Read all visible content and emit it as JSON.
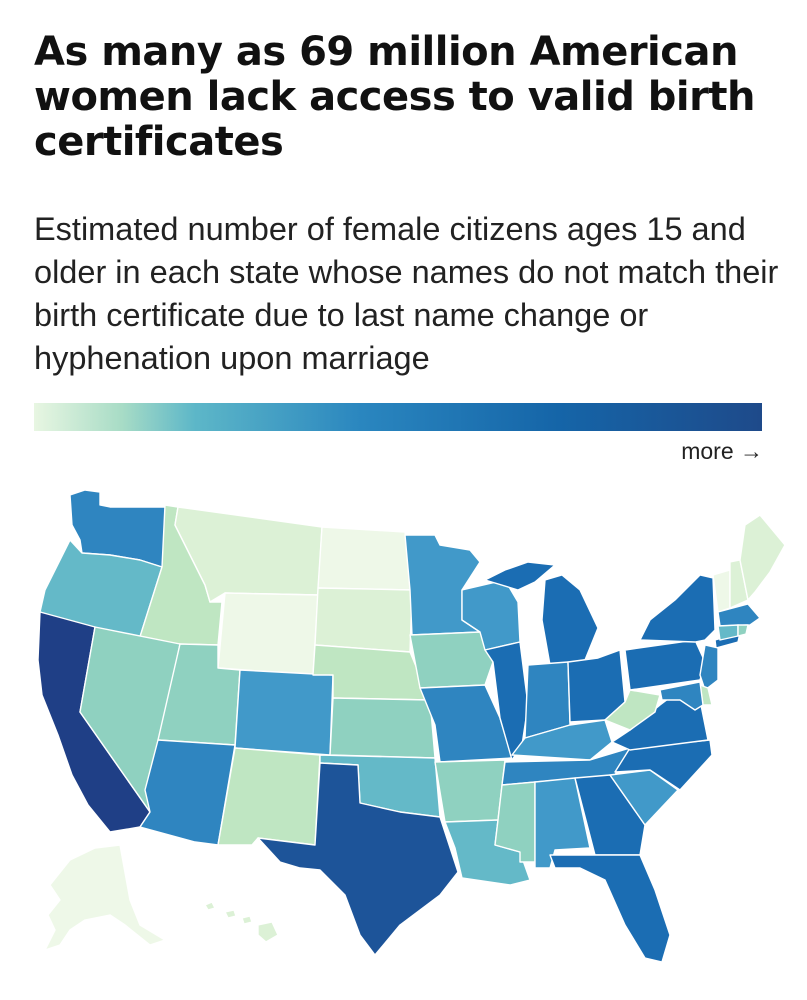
{
  "header": {
    "title": "As many as 69 million American women lack access to valid birth certificates",
    "subtitle": "Estimated number of female citizens ages 15 and older in each state whose names do not match their birth certificate due to last name change or hyphenation upon marriage"
  },
  "legend": {
    "label": "more →",
    "colors": [
      "#e8f6e2",
      "#a8dcc6",
      "#5db7c8",
      "#2a86bf",
      "#1565a8",
      "#1e4a8a"
    ]
  },
  "map": {
    "palette": {
      "lightest": "#eef8e8",
      "very-light": "#dcf1d6",
      "light": "#bfe6c2",
      "light-teal": "#8fd1c0",
      "teal": "#64b9c8",
      "mid-blue": "#4199c9",
      "blue": "#2f85c0",
      "strong-blue": "#1b6db3",
      "deep-blue": "#1d5499",
      "darkest": "#1f3f86"
    },
    "states": [
      {
        "id": "WA",
        "level": "blue"
      },
      {
        "id": "OR",
        "level": "teal"
      },
      {
        "id": "CA",
        "level": "darkest"
      },
      {
        "id": "ID",
        "level": "light"
      },
      {
        "id": "NV",
        "level": "light-teal"
      },
      {
        "id": "MT",
        "level": "very-light"
      },
      {
        "id": "WY",
        "level": "lightest"
      },
      {
        "id": "UT",
        "level": "light-teal"
      },
      {
        "id": "AZ",
        "level": "blue"
      },
      {
        "id": "CO",
        "level": "mid-blue"
      },
      {
        "id": "NM",
        "level": "light"
      },
      {
        "id": "ND",
        "level": "lightest"
      },
      {
        "id": "SD",
        "level": "very-light"
      },
      {
        "id": "NE",
        "level": "light"
      },
      {
        "id": "KS",
        "level": "light-teal"
      },
      {
        "id": "OK",
        "level": "teal"
      },
      {
        "id": "TX",
        "level": "deep-blue"
      },
      {
        "id": "MN",
        "level": "mid-blue"
      },
      {
        "id": "IA",
        "level": "light-teal"
      },
      {
        "id": "MO",
        "level": "blue"
      },
      {
        "id": "AR",
        "level": "light-teal"
      },
      {
        "id": "LA",
        "level": "teal"
      },
      {
        "id": "WI",
        "level": "mid-blue"
      },
      {
        "id": "IL",
        "level": "strong-blue"
      },
      {
        "id": "MS",
        "level": "light-teal"
      },
      {
        "id": "MI",
        "level": "strong-blue"
      },
      {
        "id": "IN",
        "level": "blue"
      },
      {
        "id": "KY",
        "level": "mid-blue"
      },
      {
        "id": "TN",
        "level": "blue"
      },
      {
        "id": "AL",
        "level": "mid-blue"
      },
      {
        "id": "OH",
        "level": "strong-blue"
      },
      {
        "id": "GA",
        "level": "strong-blue"
      },
      {
        "id": "FL",
        "level": "strong-blue"
      },
      {
        "id": "SC",
        "level": "mid-blue"
      },
      {
        "id": "NC",
        "level": "strong-blue"
      },
      {
        "id": "VA",
        "level": "strong-blue"
      },
      {
        "id": "WV",
        "level": "light"
      },
      {
        "id": "PA",
        "level": "strong-blue"
      },
      {
        "id": "NY",
        "level": "strong-blue"
      },
      {
        "id": "VT",
        "level": "lightest"
      },
      {
        "id": "NH",
        "level": "very-light"
      },
      {
        "id": "ME",
        "level": "very-light"
      },
      {
        "id": "MA",
        "level": "blue"
      },
      {
        "id": "RI",
        "level": "light-teal"
      },
      {
        "id": "CT",
        "level": "teal"
      },
      {
        "id": "NJ",
        "level": "blue"
      },
      {
        "id": "DE",
        "level": "light"
      },
      {
        "id": "MD",
        "level": "blue"
      },
      {
        "id": "AK",
        "level": "lightest"
      },
      {
        "id": "HI",
        "level": "very-light"
      }
    ]
  }
}
